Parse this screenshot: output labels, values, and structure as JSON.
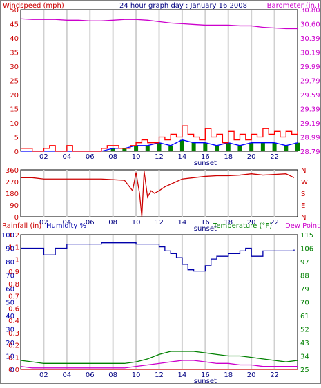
{
  "panels": {
    "wind": {
      "title": "24 hour graph day : January 16 2008",
      "left_label": "Windspeed (mph)",
      "right_label": "Barometer (in.)",
      "left_ticks": [
        "0",
        "5",
        "10",
        "15",
        "20",
        "25",
        "30",
        "35",
        "40",
        "45",
        "50"
      ],
      "right_ticks": [
        "28.79",
        "28.99",
        "29.19",
        "29.39",
        "29.59",
        "29.79",
        "29.99",
        "30.19",
        "30.39",
        "30.60",
        "30.80"
      ],
      "x_ticks": [
        "02",
        "04",
        "06",
        "08",
        "10",
        "12",
        "14",
        "16",
        "18",
        "20",
        "22"
      ],
      "sunset_label": "sunset"
    },
    "direction": {
      "left_ticks": [
        "0",
        "90",
        "180",
        "270",
        "360"
      ],
      "right_ticks": [
        "N",
        "E",
        "S",
        "W",
        "N"
      ],
      "x_ticks": [
        "02",
        "04",
        "06",
        "08",
        "10",
        "12",
        "14",
        "16",
        "18",
        "20",
        "22"
      ],
      "sunset_label": "sunset"
    },
    "climate": {
      "rain_label": "Rainfall (in)",
      "humidity_label": "Humidity %",
      "temp_label": "Temperature (°F)",
      "dew_label": "Dew Point",
      "rain_ticks": [
        "0.0",
        "0.1",
        "0.2",
        "0.3",
        "0.4",
        "0.6",
        "0.7",
        "0.8",
        "0.9",
        "1",
        "1.1",
        "1.2"
      ],
      "humidity_ticks": [
        "0",
        "10",
        "20",
        "30",
        "40",
        "50",
        "60",
        "70",
        "80",
        "90",
        "100"
      ],
      "temp_ticks": [
        "25",
        "34",
        "43",
        "52",
        "61",
        "70",
        "79",
        "88",
        "97",
        "106",
        "115"
      ],
      "x_ticks": [
        "02",
        "04",
        "06",
        "08",
        "10",
        "12",
        "14",
        "16",
        "18",
        "20",
        "22"
      ],
      "sunset_label": "sunset"
    }
  },
  "colors": {
    "windspeed": "#ff0000",
    "gust_fill": "#008000",
    "gust_line": "#0000ff",
    "barometer": "#cc00cc",
    "direction": "#cc0000",
    "humidity": "#0000aa",
    "temperature": "#008000",
    "dewpoint": "#cc00cc",
    "rain": "#cc0000",
    "grid": "#d0d0d0"
  },
  "chart_data": [
    {
      "type": "line",
      "title": "24 hour graph day : January 16 2008",
      "x_range_hours": [
        0,
        24
      ],
      "grid": true,
      "left_axis": {
        "label": "Windspeed (mph)",
        "ylim": [
          0,
          50
        ]
      },
      "right_axis": {
        "label": "Barometer (in.)",
        "ylim": [
          28.79,
          30.8
        ]
      },
      "series": [
        {
          "name": "Barometer (in.)",
          "axis": "right",
          "x": [
            0,
            1,
            2,
            3,
            4,
            5,
            6,
            7,
            8,
            9,
            10,
            11,
            12,
            13,
            14,
            15,
            16,
            17,
            18,
            19,
            20,
            21,
            22,
            23,
            24
          ],
          "values": [
            30.67,
            30.66,
            30.66,
            30.66,
            30.65,
            30.65,
            30.64,
            30.64,
            30.65,
            30.66,
            30.66,
            30.65,
            30.63,
            30.61,
            30.6,
            30.59,
            30.58,
            30.58,
            30.58,
            30.57,
            30.57,
            30.55,
            30.54,
            30.53,
            30.53
          ]
        },
        {
          "name": "Windspeed (mph)",
          "axis": "left",
          "x": [
            0,
            0.5,
            1,
            1.5,
            2,
            2.5,
            3,
            3.5,
            4,
            4.5,
            5,
            5.5,
            6,
            6.5,
            7,
            7.5,
            8,
            8.5,
            9,
            9.5,
            10,
            10.5,
            11,
            11.5,
            12,
            12.5,
            13,
            13.5,
            14,
            14.5,
            15,
            15.5,
            16,
            16.5,
            17,
            17.5,
            18,
            18.5,
            19,
            19.5,
            20,
            20.5,
            21,
            21.5,
            22,
            22.5,
            23,
            23.5,
            24
          ],
          "values": [
            1,
            1,
            0,
            0,
            1,
            2,
            0,
            0,
            2,
            0,
            0,
            0,
            0,
            0,
            1,
            2,
            2,
            1,
            1,
            2,
            3,
            4,
            3,
            3,
            5,
            4,
            6,
            5,
            9,
            6,
            5,
            4,
            8,
            5,
            6,
            3,
            7,
            4,
            6,
            4,
            6,
            5,
            8,
            6,
            7,
            5,
            7,
            6,
            7
          ]
        },
        {
          "name": "Gust",
          "axis": "left",
          "x": [
            0,
            1,
            2,
            3,
            4,
            5,
            6,
            7,
            8,
            9,
            10,
            11,
            12,
            13,
            14,
            15,
            16,
            17,
            18,
            19,
            20,
            21,
            22,
            23,
            24
          ],
          "values": [
            0,
            0,
            0,
            0,
            0,
            0,
            0,
            0,
            1,
            1,
            2,
            2,
            3,
            2,
            4,
            3,
            3,
            2,
            3,
            2,
            3,
            3,
            3,
            2,
            3
          ]
        }
      ]
    },
    {
      "type": "line",
      "x_range_hours": [
        0,
        24
      ],
      "grid": true,
      "left_axis": {
        "ylim": [
          0,
          360
        ]
      },
      "right_axis": {
        "tick_labels": [
          "N",
          "E",
          "S",
          "W",
          "N"
        ]
      },
      "series": [
        {
          "name": "Wind direction",
          "x": [
            0,
            1,
            2,
            3,
            4,
            5,
            6,
            7,
            8,
            9,
            9.7,
            10,
            10.3,
            10.5,
            10.7,
            11,
            11.3,
            11.6,
            12,
            12.5,
            13,
            14,
            15,
            16,
            17,
            18,
            19,
            20,
            21,
            22,
            23,
            23.7
          ],
          "values": [
            300,
            300,
            290,
            290,
            290,
            290,
            290,
            290,
            285,
            280,
            200,
            340,
            180,
            0,
            350,
            150,
            200,
            180,
            200,
            230,
            250,
            290,
            300,
            310,
            315,
            315,
            320,
            330,
            320,
            325,
            330,
            300
          ]
        }
      ]
    },
    {
      "type": "line",
      "x_range_hours": [
        0,
        24
      ],
      "grid": true,
      "axes": {
        "rainfall_in": {
          "label": "Rainfall (in)",
          "ylim": [
            0,
            1.2
          ]
        },
        "humidity_pct": {
          "label": "Humidity %",
          "ylim": [
            0,
            100
          ]
        },
        "temperature_f": {
          "label": "Temperature (°F)",
          "ylim": [
            25,
            115
          ]
        }
      },
      "series": [
        {
          "name": "Humidity %",
          "axis": "humidity_pct",
          "x": [
            0,
            1,
            2,
            3,
            4,
            5,
            6,
            7,
            8,
            9,
            10,
            11,
            12,
            12.5,
            13,
            13.5,
            14,
            14.5,
            15,
            15.5,
            16,
            16.5,
            17,
            18,
            19,
            19.5,
            20,
            21,
            22,
            23,
            23.7
          ],
          "values": [
            90,
            90,
            85,
            90,
            93,
            93,
            93,
            94,
            94,
            94,
            93,
            93,
            91,
            88,
            86,
            83,
            78,
            74,
            73,
            73,
            77,
            82,
            84,
            86,
            88,
            90,
            84,
            88,
            88,
            88,
            89
          ]
        },
        {
          "name": "Temperature (°F)",
          "axis": "temperature_f",
          "x": [
            0,
            1,
            2,
            3,
            4,
            5,
            6,
            7,
            8,
            9,
            10,
            11,
            12,
            13,
            14,
            15,
            16,
            17,
            18,
            19,
            20,
            21,
            22,
            23,
            24
          ],
          "values": [
            31,
            30,
            29,
            29,
            29,
            29,
            29,
            29,
            29,
            29,
            30,
            32,
            35,
            37,
            37,
            37,
            36,
            35,
            34,
            34,
            33,
            32,
            31,
            30,
            31
          ]
        },
        {
          "name": "Dew Point",
          "axis": "temperature_f",
          "x": [
            0,
            1,
            2,
            3,
            4,
            5,
            6,
            7,
            8,
            9,
            10,
            11,
            12,
            13,
            14,
            15,
            16,
            17,
            18,
            19,
            20,
            21,
            22,
            23,
            24
          ],
          "values": [
            27,
            26,
            26,
            26,
            26,
            26,
            26,
            26,
            26,
            26,
            27,
            28,
            29,
            30,
            31,
            31,
            30,
            29,
            29,
            28,
            28,
            27,
            27,
            27,
            27
          ]
        },
        {
          "name": "Rainfall (in)",
          "axis": "rainfall_in",
          "x": [
            0,
            24
          ],
          "values": [
            0,
            0
          ]
        }
      ]
    }
  ]
}
